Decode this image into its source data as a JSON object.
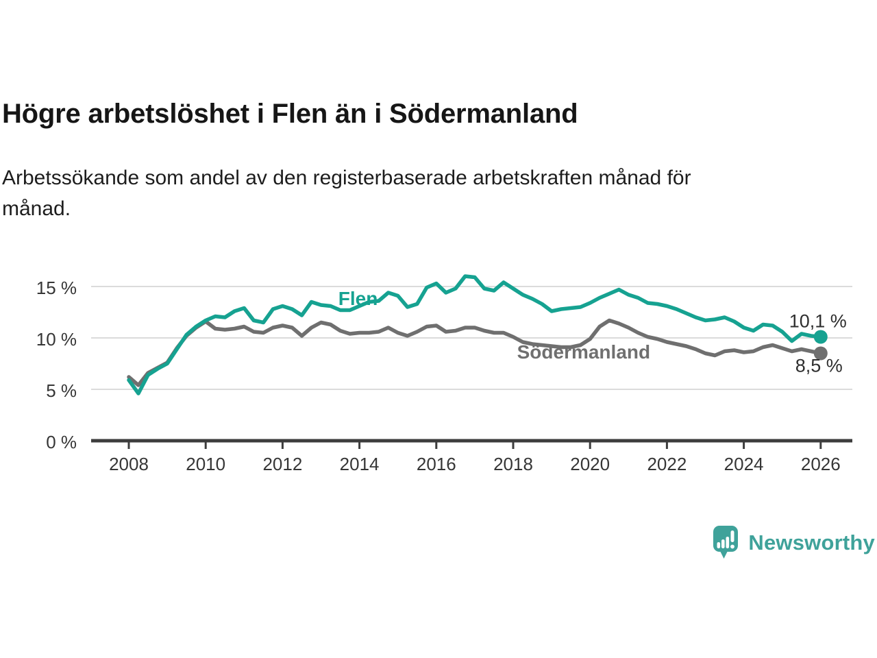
{
  "header": {
    "title": "Högre arbetslöshet i Flen än i Södermanland"
  },
  "subtitle": {
    "line1": "Arbetssökande som andel av den registerbaserade arbetskraften månad för",
    "line2": "månad."
  },
  "footer": {
    "brand": "Newsworthy",
    "logo_icon": "bar-chart-pin-icon"
  },
  "colors": {
    "flen": "#16A291",
    "sodermanland": "#6F6F6F",
    "axis": "#3D3D3D",
    "gridline": "#DBDBDB",
    "brand_teal": "#3FA29A"
  },
  "chart_data": {
    "type": "line",
    "title": "Högre arbetslöshet i Flen än i Södermanland",
    "subtitle": "Arbetssökande som andel av den registerbaserade arbetskraften månad för månad.",
    "unit": "%",
    "x_range": [
      2008,
      2026
    ],
    "points_per_year": 4,
    "ylim": [
      0,
      17
    ],
    "grid": "horizontal",
    "legend_position": "inline-labels",
    "y_ticks": [
      {
        "value": 0,
        "label": "0 %"
      },
      {
        "value": 5,
        "label": "5 %"
      },
      {
        "value": 10,
        "label": "10 %"
      },
      {
        "value": 15,
        "label": "15 %"
      }
    ],
    "x_ticks": [
      {
        "value": 2008,
        "label": "2008"
      },
      {
        "value": 2010,
        "label": "2010"
      },
      {
        "value": 2012,
        "label": "2012"
      },
      {
        "value": 2014,
        "label": "2014"
      },
      {
        "value": 2016,
        "label": "2016"
      },
      {
        "value": 2018,
        "label": "2018"
      },
      {
        "value": 2020,
        "label": "2020"
      },
      {
        "value": 2022,
        "label": "2022"
      },
      {
        "value": 2024,
        "label": "2024"
      },
      {
        "value": 2026,
        "label": "2026"
      }
    ],
    "series": [
      {
        "name": "Flen",
        "color": "#16A291",
        "end_value": 10.1,
        "end_label": "10,1 %",
        "label_anchor": {
          "t": 2013.45,
          "v": 13.2
        },
        "values": [
          5.9,
          4.6,
          6.4,
          7.0,
          7.5,
          8.9,
          10.3,
          11.1,
          11.7,
          12.1,
          12.0,
          12.6,
          12.9,
          11.7,
          11.5,
          12.8,
          13.1,
          12.8,
          12.2,
          13.5,
          13.2,
          13.1,
          12.7,
          12.7,
          13.1,
          13.5,
          13.6,
          14.4,
          14.1,
          13.0,
          13.3,
          14.9,
          15.3,
          14.4,
          14.8,
          16.0,
          15.9,
          14.8,
          14.6,
          15.4,
          14.8,
          14.2,
          13.8,
          13.3,
          12.6,
          12.8,
          12.9,
          13.0,
          13.4,
          13.9,
          14.3,
          14.7,
          14.2,
          13.9,
          13.4,
          13.3,
          13.1,
          12.8,
          12.4,
          12.0,
          11.7,
          11.8,
          12.0,
          11.6,
          11.0,
          10.7,
          11.3,
          11.2,
          10.6,
          9.7,
          10.4,
          10.2,
          10.1
        ]
      },
      {
        "name": "Södermanland",
        "color": "#6F6F6F",
        "end_value": 8.5,
        "end_label": "8,5 %",
        "label_anchor": {
          "t": 2018.1,
          "v": 8.0
        },
        "values": [
          6.2,
          5.4,
          6.6,
          7.1,
          7.6,
          9.0,
          10.2,
          11.0,
          11.6,
          10.9,
          10.8,
          10.9,
          11.1,
          10.6,
          10.5,
          11.0,
          11.2,
          11.0,
          10.2,
          11.0,
          11.5,
          11.3,
          10.7,
          10.4,
          10.5,
          10.5,
          10.6,
          11.0,
          10.5,
          10.2,
          10.6,
          11.1,
          11.2,
          10.6,
          10.7,
          11.0,
          11.0,
          10.7,
          10.5,
          10.5,
          10.1,
          9.6,
          9.4,
          9.3,
          9.2,
          9.1,
          9.1,
          9.3,
          9.9,
          11.1,
          11.7,
          11.4,
          11.0,
          10.5,
          10.1,
          9.9,
          9.6,
          9.4,
          9.2,
          8.9,
          8.5,
          8.3,
          8.7,
          8.8,
          8.6,
          8.7,
          9.1,
          9.3,
          9.0,
          8.7,
          8.9,
          8.7,
          8.5
        ]
      }
    ]
  }
}
